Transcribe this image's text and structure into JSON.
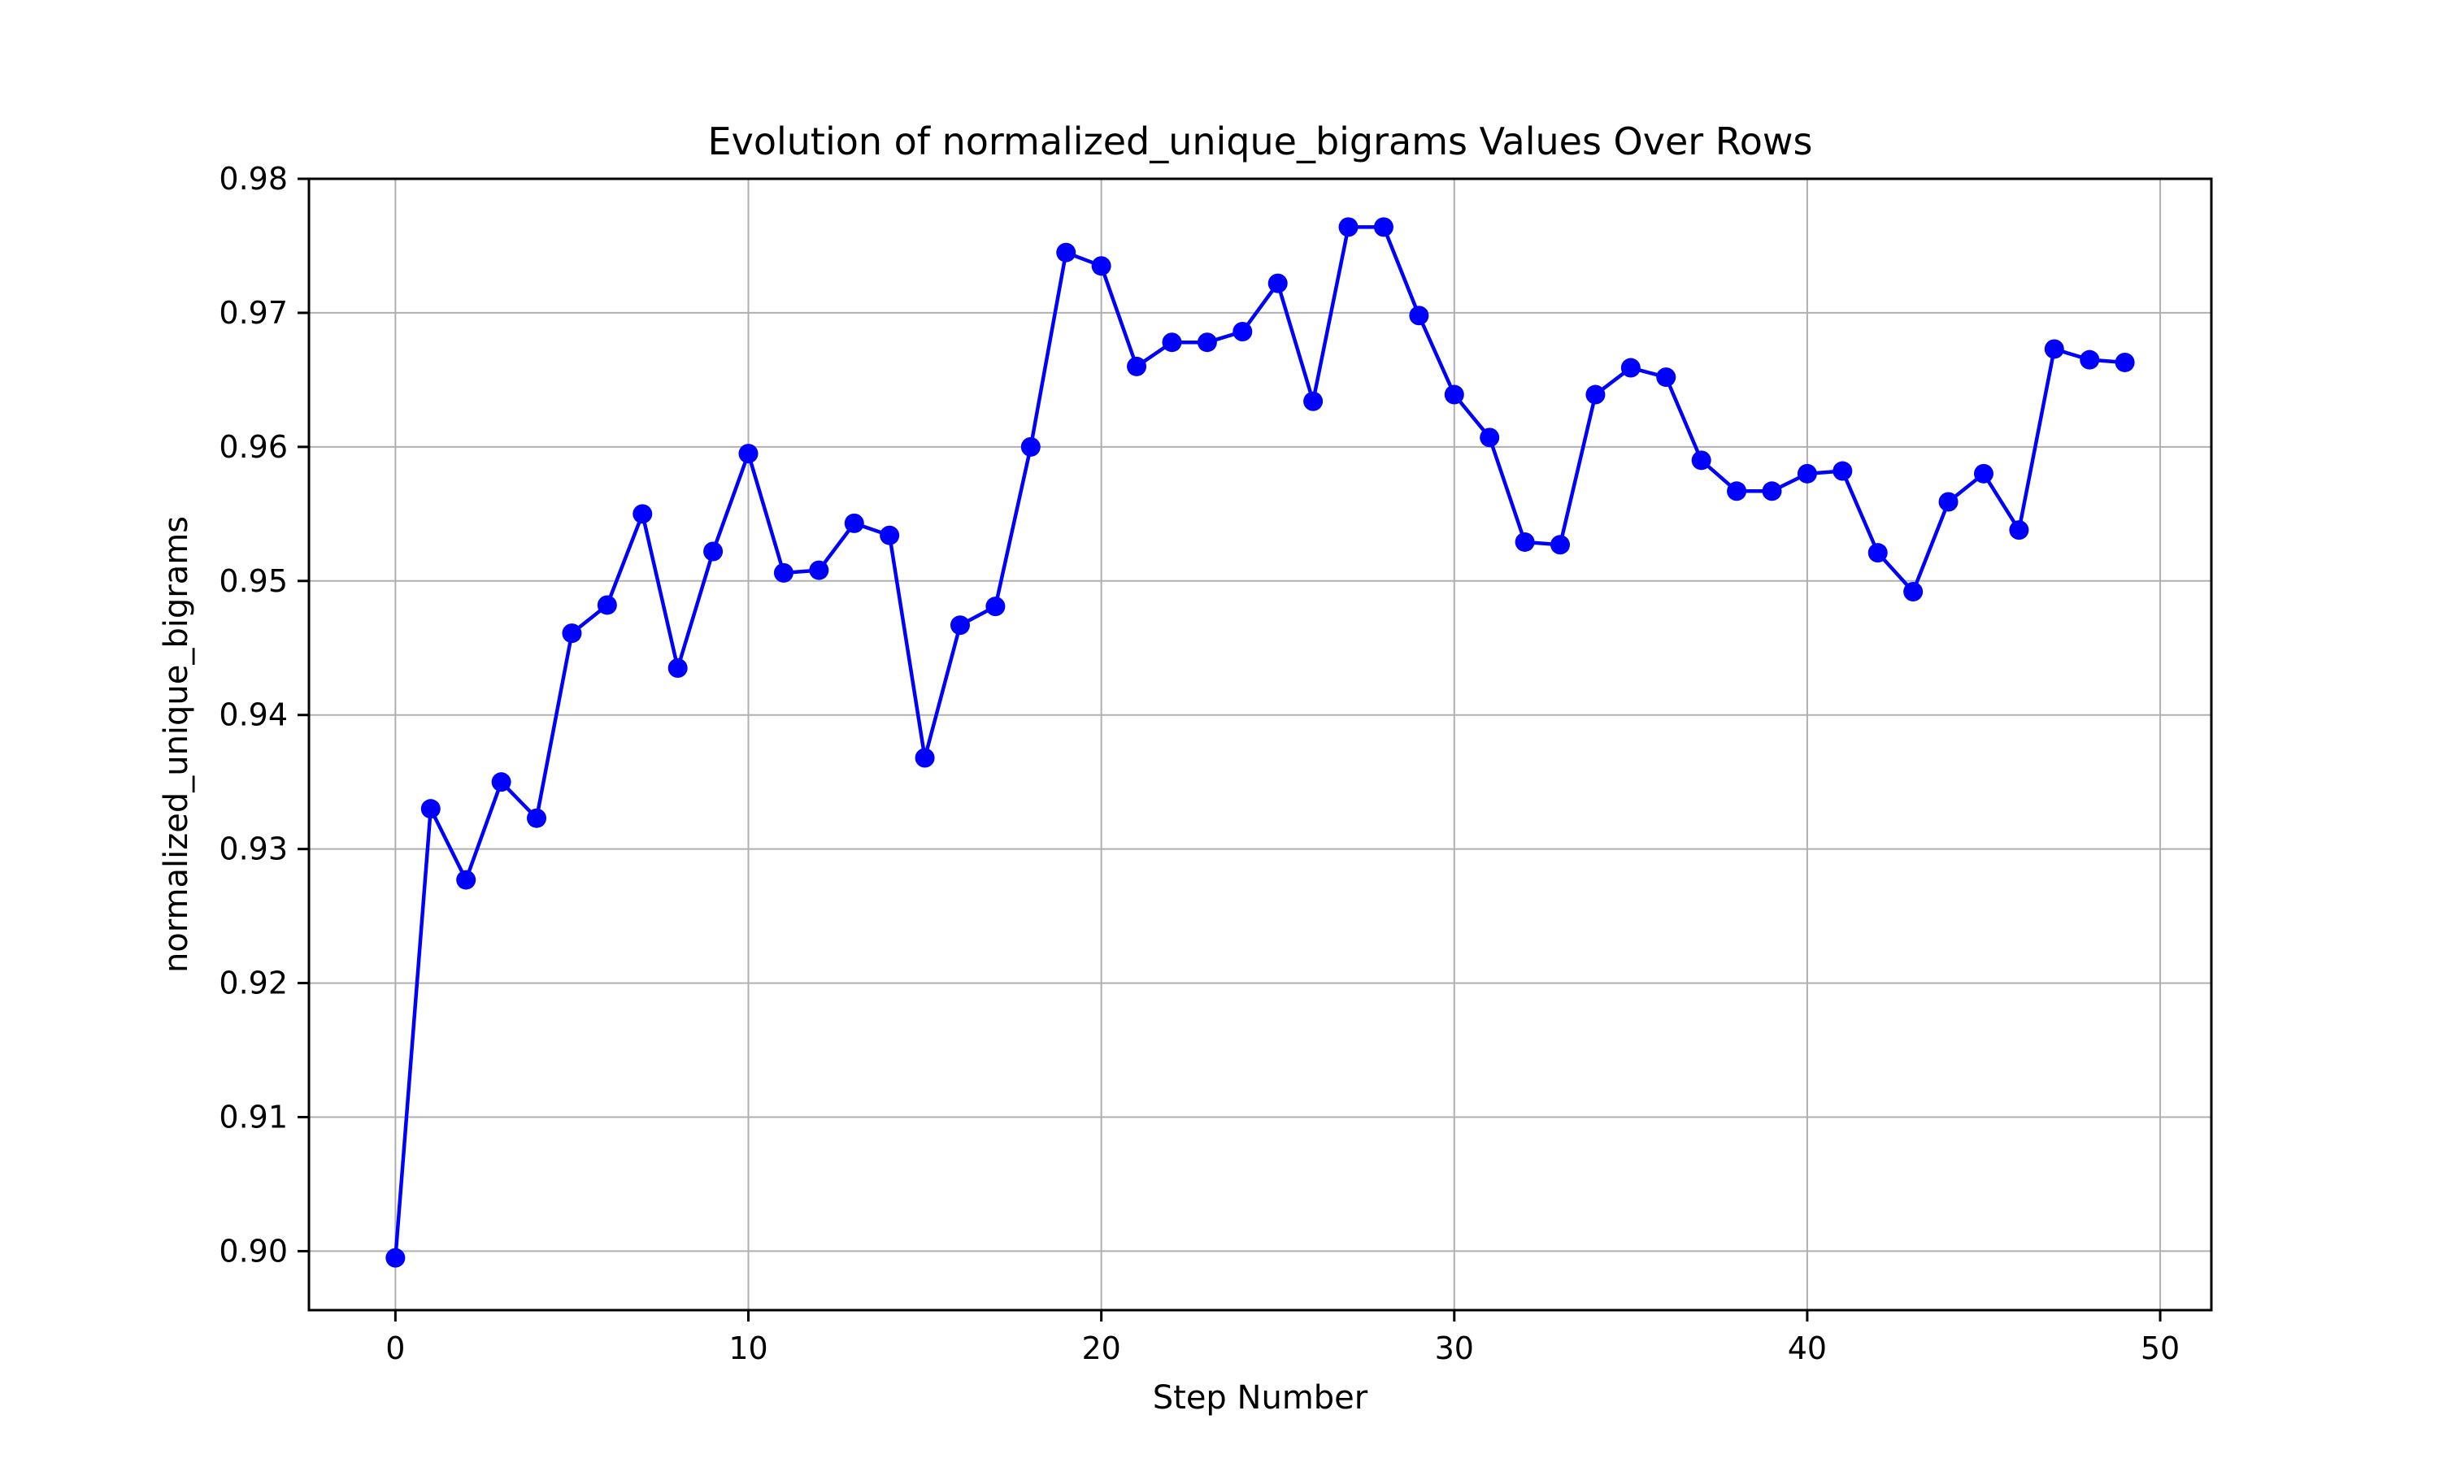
{
  "chart_data": {
    "type": "line",
    "title": "Evolution of normalized_unique_bigrams Values Over Rows",
    "xlabel": "Step Number",
    "ylabel": "normalized_unique_bigrams",
    "xlim": [
      -2.45,
      51.45
    ],
    "ylim": [
      0.8956,
      0.98
    ],
    "xticks": [
      0,
      10,
      20,
      30,
      40,
      50
    ],
    "xtick_labels": [
      "0",
      "10",
      "20",
      "30",
      "40",
      "50"
    ],
    "yticks": [
      0.9,
      0.91,
      0.92,
      0.93,
      0.94,
      0.95,
      0.96,
      0.97,
      0.98
    ],
    "ytick_labels": [
      "0.90",
      "0.91",
      "0.92",
      "0.93",
      "0.94",
      "0.95",
      "0.96",
      "0.97",
      "0.98"
    ],
    "grid": true,
    "series": [
      {
        "color": "#0000ff",
        "marker": "circle",
        "x": [
          0,
          1,
          2,
          3,
          4,
          5,
          6,
          7,
          8,
          9,
          10,
          11,
          12,
          13,
          14,
          15,
          16,
          17,
          18,
          19,
          20,
          21,
          22,
          23,
          24,
          25,
          26,
          27,
          28,
          29,
          30,
          31,
          32,
          33,
          34,
          35,
          36,
          37,
          38,
          39,
          40,
          41,
          42,
          43,
          44,
          45,
          46,
          47,
          48,
          49
        ],
        "values": [
          0.8995,
          0.933,
          0.9277,
          0.935,
          0.9323,
          0.9461,
          0.9482,
          0.955,
          0.9435,
          0.9522,
          0.9595,
          0.9506,
          0.9508,
          0.9543,
          0.9534,
          0.9368,
          0.9467,
          0.9481,
          0.96,
          0.9745,
          0.9735,
          0.966,
          0.9678,
          0.9678,
          0.9686,
          0.9722,
          0.9634,
          0.9764,
          0.9764,
          0.9698,
          0.9639,
          0.9607,
          0.9529,
          0.9527,
          0.9639,
          0.9659,
          0.9652,
          0.959,
          0.9567,
          0.9567,
          0.958,
          0.9582,
          0.9521,
          0.9492,
          0.9559,
          0.958,
          0.9538,
          0.9673,
          0.9665,
          0.9663
        ]
      }
    ]
  }
}
